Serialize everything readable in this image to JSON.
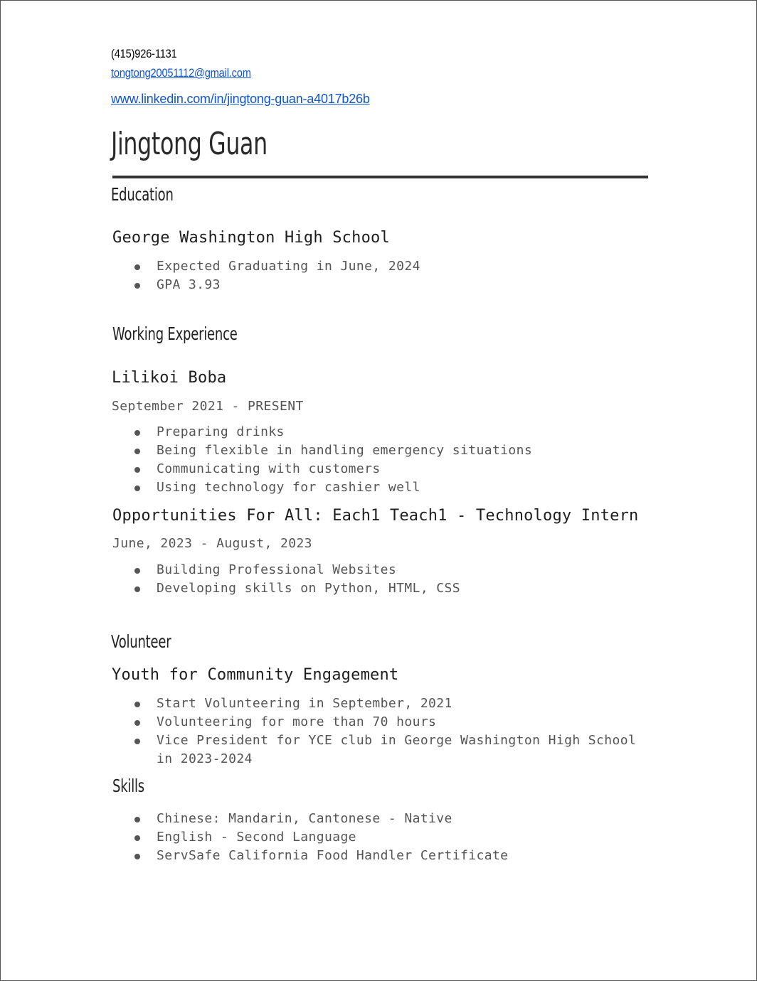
{
  "contact": {
    "phone": "(415)926-1131",
    "email": "tongtong20051112@gmail.com",
    "linkedin": "www.linkedin.com/in/jingtong-guan-a4017b26b"
  },
  "name": "Jingtong Guan",
  "education": {
    "heading": "Education",
    "school": "George Washington High School",
    "bullets": [
      "Expected Graduating in June, 2024",
      "GPA 3.93"
    ]
  },
  "experience": {
    "heading": "Working Experience",
    "jobs": [
      {
        "org": "Lilikoi Boba",
        "dates": "September 2021 - PRESENT",
        "bullets": [
          "Preparing drinks",
          "Being flexible in handling emergency situations",
          "Communicating with customers",
          "Using technology for cashier well"
        ]
      },
      {
        "org": "Opportunities For All: Each1 Teach1 - Technology Intern",
        "dates": "June, 2023 - August, 2023",
        "bullets": [
          "Building Professional Websites",
          "Developing skills on Python, HTML, CSS"
        ]
      }
    ]
  },
  "volunteer": {
    "heading": "Volunteer",
    "org": "Youth for Community Engagement",
    "bullets": [
      "Start Volunteering in September, 2021",
      "Volunteering for more than 70 hours",
      "Vice President for YCE club in George Washington High School in 2023-2024"
    ]
  },
  "skills": {
    "heading": "Skills",
    "bullets": [
      "Chinese: Mandarin, Cantonese - Native",
      "English - Second Language",
      "ServSafe California Food Handler Certificate"
    ]
  }
}
